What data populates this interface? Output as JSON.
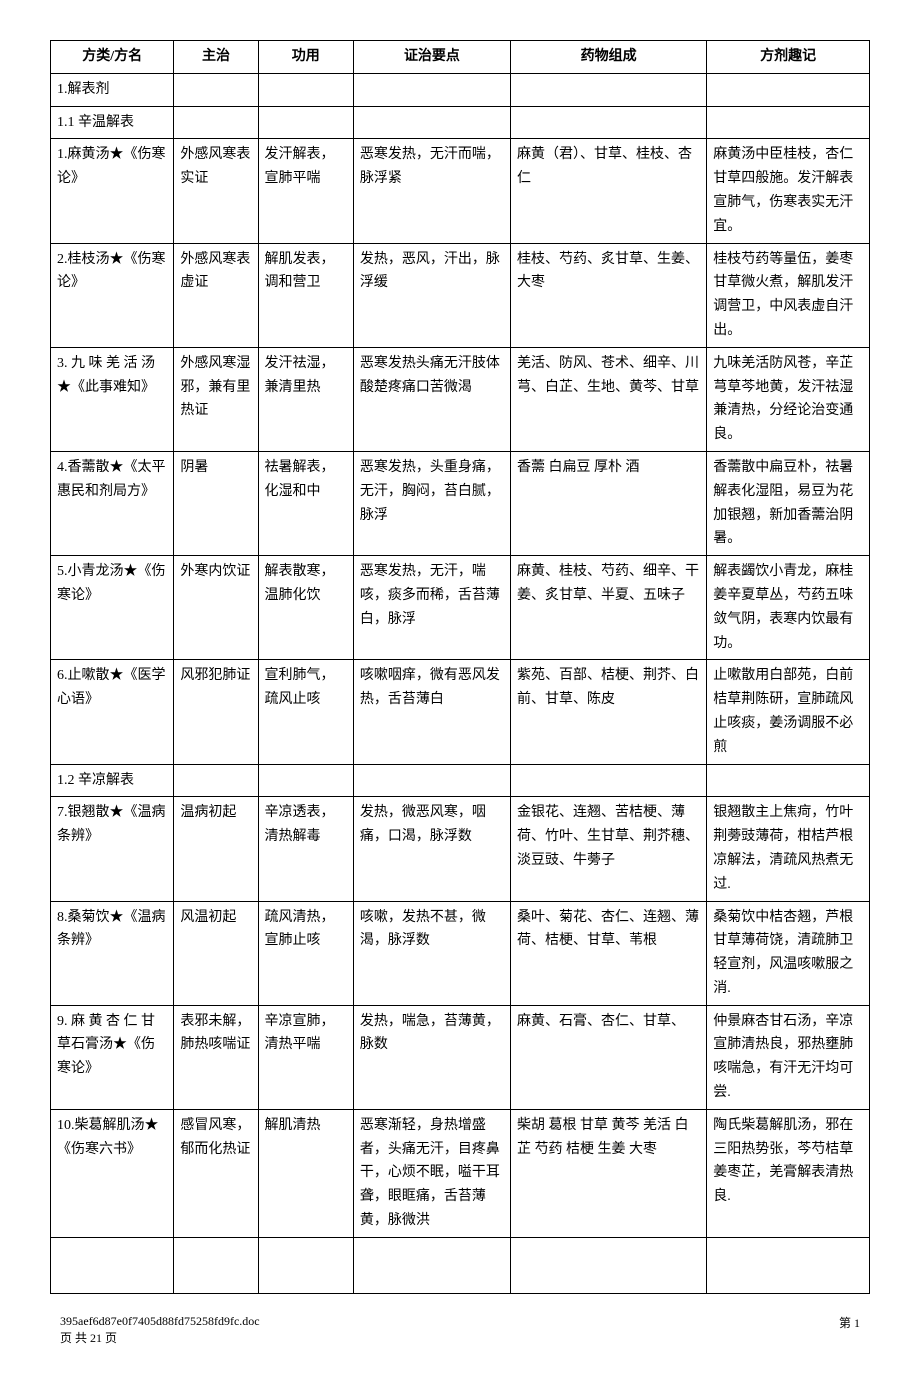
{
  "headers": {
    "fanglei": "方类/方名",
    "zhuzhi": "主治",
    "gongyong": "功用",
    "zhengzhi": "证治要点",
    "yaowu": "药物组成",
    "quji": "方剂趣记"
  },
  "sections": {
    "s1": "1.解表剂",
    "s1_1": "1.1 辛温解表",
    "s1_2": "1.2 辛凉解表"
  },
  "rows": {
    "r1": {
      "fanglei": "1.麻黄汤★《伤寒论》",
      "zhuzhi": "外感风寒表实证",
      "gongyong": "发汗解表，宣肺平喘",
      "zhengzhi": "恶寒发热，无汗而喘，脉浮紧",
      "yaowu": "麻黄（君）、甘草、桂枝、杏仁",
      "quji": "麻黄汤中臣桂枝，杏仁甘草四般施。发汗解表宣肺气，伤寒表实无汗宜。"
    },
    "r2": {
      "fanglei": "2.桂枝汤★《伤寒论》",
      "zhuzhi": "外感风寒表虚证",
      "gongyong": "解肌发表，调和营卫",
      "zhengzhi": "发热，恶风，汗出，脉浮缓",
      "yaowu": "桂枝、芍药、炙甘草、生姜、大枣",
      "quji": "桂枝芍药等量伍，姜枣甘草微火煮，解肌发汗调营卫，中风表虚自汗出。"
    },
    "r3": {
      "fanglei": "3. 九 味 羌 活 汤★《此事难知》",
      "zhuzhi": "外感风寒湿邪，兼有里热证",
      "gongyong": "发汗祛湿，兼清里热",
      "zhengzhi": "恶寒发热头痛无汗肢体酸楚疼痛口苦微渴",
      "yaowu": "羌活、防风、苍术、细辛、川芎、白芷、生地、黄芩、甘草",
      "quji": "九味羌活防风苍，辛芷芎草芩地黄，发汗祛湿兼清热，分经论治变通良。"
    },
    "r4": {
      "fanglei": "4.香薷散★《太平惠民和剂局方》",
      "zhuzhi": "阴暑",
      "gongyong": "祛暑解表，化湿和中",
      "zhengzhi": "恶寒发热，头重身痛，无汗，胸闷，苔白腻，脉浮",
      "yaowu": "香薷 白扁豆 厚朴 酒",
      "quji": "香薷散中扁豆朴，祛暑解表化湿阻，易豆为花加银翘，新加香薷治阴暑。"
    },
    "r5": {
      "fanglei": "5.小青龙汤★《伤寒论》",
      "zhuzhi": "外寒内饮证",
      "gongyong": "解表散寒，温肺化饮",
      "zhengzhi": "恶寒发热，无汗，喘咳，痰多而稀，舌苔薄白，脉浮",
      "yaowu": "麻黄、桂枝、芍药、细辛、干姜、炙甘草、半夏、五味子",
      "quji": "解表蠲饮小青龙，麻桂姜辛夏草丛，芍药五味敛气阴，表寒内饮最有功。"
    },
    "r6": {
      "fanglei": "6.止嗽散★《医学心语》",
      "zhuzhi": "风邪犯肺证",
      "gongyong": "宣利肺气，疏风止咳",
      "zhengzhi": "咳嗽咽痒，微有恶风发热，舌苔薄白",
      "yaowu": "紫苑、百部、桔梗、荆芥、白前、甘草、陈皮",
      "quji": "止嗽散用白部苑，白前桔草荆陈研，宣肺疏风止咳痰，姜汤调服不必煎"
    },
    "r7": {
      "fanglei": "7.银翘散★《温病条辨》",
      "zhuzhi": "温病初起",
      "gongyong": "辛凉透表，清热解毒",
      "zhengzhi": "发热，微恶风寒，咽痛，口渴，脉浮数",
      "yaowu": "金银花、连翘、苦桔梗、薄荷、竹叶、生甘草、荆芥穗、淡豆豉、牛蒡子",
      "quji": "银翘散主上焦疴，竹叶荆蒡豉薄荷，柑桔芦根凉解法，清疏风热煮无过."
    },
    "r8": {
      "fanglei": "8.桑菊饮★《温病条辨》",
      "zhuzhi": "风温初起",
      "gongyong": "疏风清热，宣肺止咳",
      "zhengzhi": "咳嗽，发热不甚，微渴，脉浮数",
      "yaowu": "桑叶、菊花、杏仁、连翘、薄荷、桔梗、甘草、苇根",
      "quji": "桑菊饮中桔杏翘，芦根甘草薄荷饶，清疏肺卫轻宣剂，风温咳嗽服之消."
    },
    "r9": {
      "fanglei": "9. 麻 黄 杏 仁 甘草石膏汤★《伤寒论》",
      "zhuzhi": "表邪未解，肺热咳喘证",
      "gongyong": "辛凉宣肺，清热平喘",
      "zhengzhi": "发热，喘急，苔薄黄，脉数",
      "yaowu": "麻黄、石膏、杏仁、甘草、",
      "quji": "仲景麻杏甘石汤，辛凉宣肺清热良，邪热壅肺咳喘急，有汗无汗均可尝."
    },
    "r10": {
      "fanglei": "10.柴葛解肌汤★《伤寒六书》",
      "zhuzhi": "感冒风寒，郁而化热证",
      "gongyong": "解肌清热",
      "zhengzhi": "恶寒渐轻，身热增盛者，头痛无汗，目疼鼻干，心烦不眠，嗌干耳聋，眼眶痛，舌苔薄黄，脉微洪",
      "yaowu": "柴胡 葛根 甘草 黄芩 羌活 白芷 芍药 桔梗 生姜 大枣",
      "quji": "陶氏柴葛解肌汤，邪在三阳热势张，芩芍桔草姜枣芷，羌膏解表清热良."
    }
  },
  "footer": {
    "filename": "395aef6d87e0f7405d88fd75258fd9fc.doc",
    "page_info_left": "页 共 21 页",
    "page_right": "第 1"
  }
}
